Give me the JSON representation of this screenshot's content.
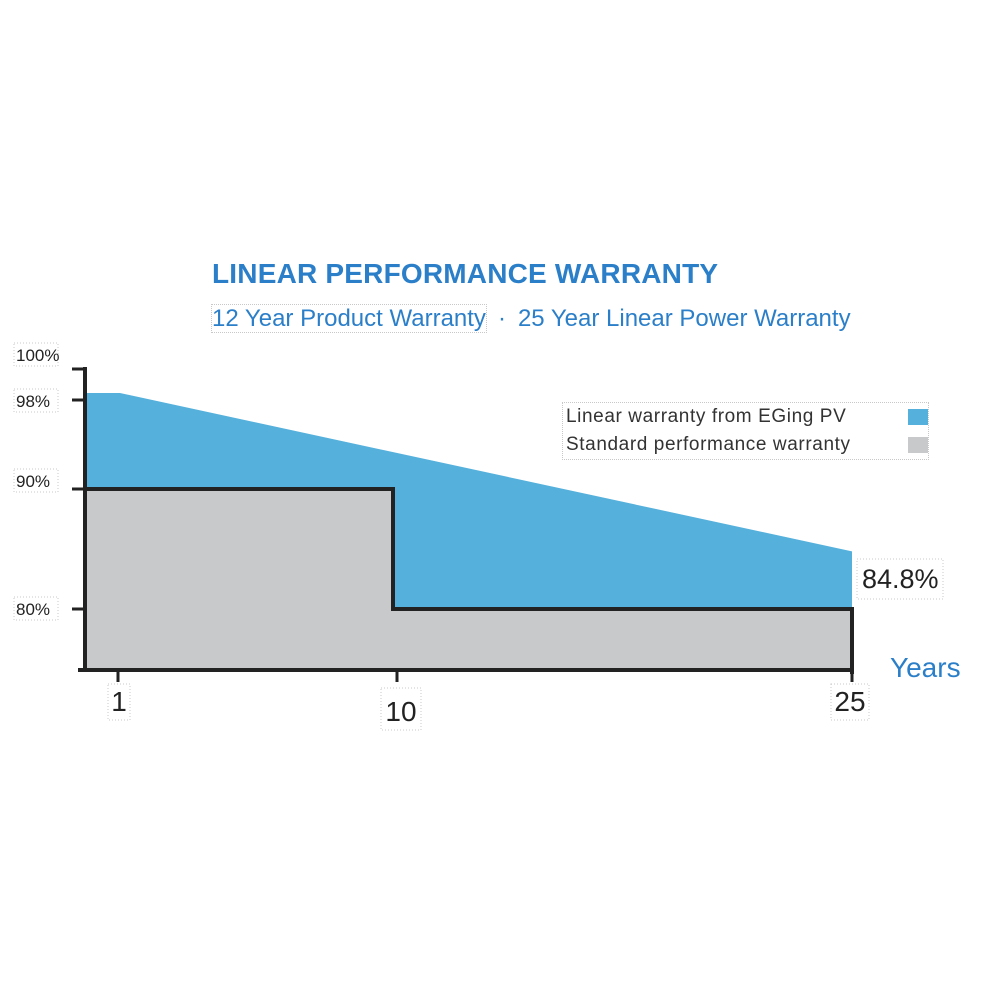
{
  "title": "LINEAR PERFORMANCE WARRANTY",
  "subtitle": {
    "product": "12 Year Product Warranty",
    "separator": "·",
    "power": "25 Year Linear Power Warranty"
  },
  "colors": {
    "accent": "#2b7fc9",
    "linear_fill": "#55b0dc",
    "standard_fill": "#c8c9cb",
    "axis": "#222222"
  },
  "legend": [
    {
      "label": "Linear warranty from EGing PV",
      "color": "#55b0dc"
    },
    {
      "label": "Standard performance warranty",
      "color": "#c8c9cb"
    }
  ],
  "chart_data": {
    "type": "area",
    "xlabel": "Years",
    "ylabel": "",
    "x_ticks": [
      "1",
      "10",
      "25"
    ],
    "y_ticks": [
      "100%",
      "98%",
      "90%",
      "80%"
    ],
    "xlim": [
      0,
      25
    ],
    "ylim": [
      75,
      100
    ],
    "grid": false,
    "legend_position": "top-right",
    "series": [
      {
        "name": "Linear warranty from EGing PV",
        "points": [
          [
            0,
            98
          ],
          [
            1,
            98
          ],
          [
            25,
            84.8
          ]
        ]
      },
      {
        "name": "Standard performance warranty",
        "points": [
          [
            0,
            90
          ],
          [
            10,
            90
          ],
          [
            10,
            80
          ],
          [
            25,
            80
          ]
        ]
      }
    ],
    "annotations": [
      "84.8%"
    ]
  }
}
